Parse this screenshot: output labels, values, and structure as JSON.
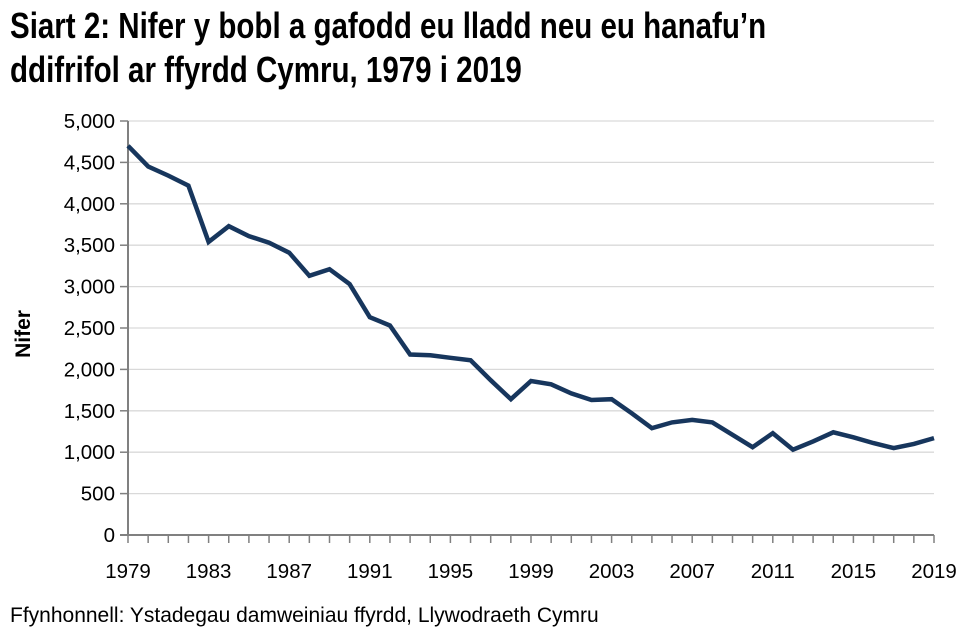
{
  "page": {
    "title": "Siart 2: Nifer y bobl a gafodd eu lladd neu eu hanafu’n ddifrifol ar ffyrdd Cymru, 1979 i 2019",
    "source": "Ffynhonnell: Ystadegau damweiniau ffyrdd, Llywodraeth Cymru"
  },
  "chart_data": {
    "type": "line",
    "title": "Siart 2: Nifer y bobl a gafodd eu lladd neu eu hanafu’n ddifrifol ar ffyrdd Cymru, 1979 i 2019",
    "xlabel": "",
    "ylabel": "Nifer",
    "legend_position": "none",
    "grid": "horizontal",
    "xlim": [
      1979,
      2019
    ],
    "ylim": [
      0,
      5000
    ],
    "x": [
      1979,
      1980,
      1981,
      1982,
      1983,
      1984,
      1985,
      1986,
      1987,
      1988,
      1989,
      1990,
      1991,
      1992,
      1993,
      1994,
      1995,
      1996,
      1997,
      1998,
      1999,
      2000,
      2001,
      2002,
      2003,
      2004,
      2005,
      2006,
      2007,
      2008,
      2009,
      2010,
      2011,
      2012,
      2013,
      2014,
      2015,
      2016,
      2017,
      2018,
      2019
    ],
    "values": [
      4700,
      4450,
      4340,
      4220,
      3540,
      3730,
      3610,
      3530,
      3410,
      3130,
      3210,
      3030,
      2630,
      2530,
      2180,
      2170,
      2140,
      2110,
      1870,
      1640,
      1860,
      1820,
      1710,
      1630,
      1640,
      1470,
      1290,
      1360,
      1390,
      1360,
      1210,
      1060,
      1230,
      1030,
      1130,
      1240,
      1180,
      1110,
      1050,
      1100,
      1170
    ],
    "y_ticks": [
      0,
      500,
      1000,
      1500,
      2000,
      2500,
      3000,
      3500,
      4000,
      4500,
      5000
    ],
    "y_tick_labels": [
      "0",
      "500",
      "1,000",
      "1,500",
      "2,000",
      "2,500",
      "3,000",
      "3,500",
      "4,000",
      "4,500",
      "5,000"
    ],
    "x_tick_labels": [
      "1979",
      "1983",
      "1987",
      "1991",
      "1995",
      "1999",
      "2003",
      "2007",
      "2011",
      "2015",
      "2019"
    ],
    "colors": {
      "line": "#17365d",
      "gridline": "#d9d9d9",
      "axis": "#808080",
      "text": "#000000",
      "background": "#ffffff"
    }
  }
}
